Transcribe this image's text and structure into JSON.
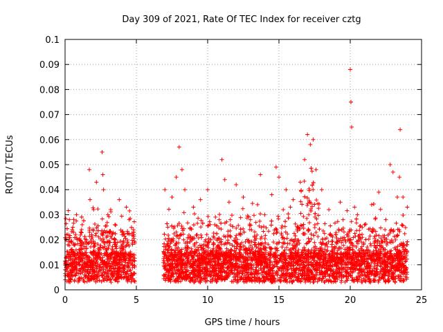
{
  "chart_data": {
    "type": "scatter",
    "title": "Day 309 of 2021, Rate Of TEC Index for receiver cztg",
    "xlabel": "GPS time / hours",
    "ylabel": "ROTI / TECUs",
    "xlim": [
      0,
      25
    ],
    "ylim": [
      0,
      0.1
    ],
    "x_ticks": [
      "0",
      "5",
      "10",
      "15",
      "20",
      "25"
    ],
    "y_ticks": [
      "0",
      "0.01",
      "0.02",
      "0.03",
      "0.04",
      "0.05",
      "0.06",
      "0.07",
      "0.08",
      "0.09",
      "0.1"
    ],
    "grid": true,
    "marker": "+",
    "color": "#ff0000",
    "data_gap_hours": [
      4.9,
      6.9
    ],
    "series": [
      {
        "x": [
          0.0,
          0.1,
          0.2,
          0.3,
          0.4,
          0.5,
          0.6,
          0.8,
          1.0,
          1.2,
          1.5,
          1.7,
          1.75,
          2.0,
          2.2,
          2.6,
          2.65,
          2.7,
          3.0,
          3.2,
          3.5,
          3.8,
          4.0,
          4.3,
          4.5,
          4.8,
          7.0,
          7.2,
          7.5,
          7.8,
          8.0,
          8.2,
          8.4,
          9.0,
          9.5,
          10.0,
          10.5,
          11.0,
          11.2,
          11.5,
          12.0,
          12.5,
          13.0,
          13.5,
          13.7,
          14.0,
          14.5,
          14.8,
          15.0,
          15.3,
          15.5,
          15.8,
          16.0,
          16.5,
          16.8,
          17.0,
          17.2,
          17.4,
          17.6,
          18.0,
          18.5,
          19.0,
          19.3,
          19.5,
          20.0,
          20.05,
          20.1,
          20.3,
          20.5,
          21.0,
          21.5,
          22.0,
          22.5,
          22.8,
          23.0,
          23.3,
          23.45,
          23.5,
          23.7,
          24.0
        ],
        "y": [
          0.008,
          0.022,
          0.018,
          0.028,
          0.012,
          0.024,
          0.015,
          0.03,
          0.01,
          0.026,
          0.02,
          0.048,
          0.036,
          0.032,
          0.043,
          0.055,
          0.046,
          0.04,
          0.03,
          0.032,
          0.026,
          0.036,
          0.022,
          0.033,
          0.028,
          0.024,
          0.04,
          0.025,
          0.037,
          0.045,
          0.057,
          0.048,
          0.04,
          0.033,
          0.036,
          0.04,
          0.026,
          0.052,
          0.044,
          0.035,
          0.042,
          0.037,
          0.028,
          0.034,
          0.046,
          0.03,
          0.038,
          0.049,
          0.045,
          0.032,
          0.04,
          0.033,
          0.036,
          0.043,
          0.052,
          0.062,
          0.058,
          0.06,
          0.048,
          0.04,
          0.032,
          0.022,
          0.035,
          0.028,
          0.088,
          0.075,
          0.065,
          0.033,
          0.03,
          0.026,
          0.034,
          0.039,
          0.028,
          0.05,
          0.047,
          0.037,
          0.045,
          0.064,
          0.037,
          0.033
        ]
      }
    ]
  }
}
